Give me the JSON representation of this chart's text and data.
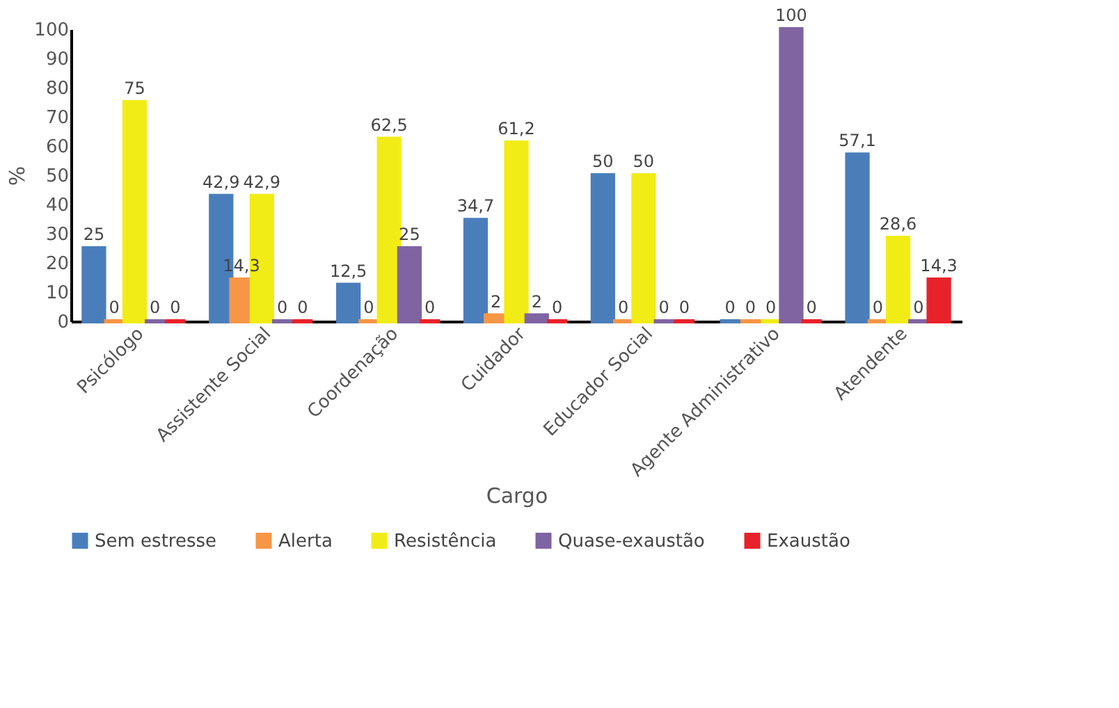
{
  "chart_data": {
    "type": "bar",
    "xlabel": "Cargo",
    "ylabel": "%",
    "categories": [
      "Psicólogo",
      "Assistente Social",
      "Coordenação",
      "Cuidador",
      "Educador Social",
      "Agente Administrativo",
      "Atendente"
    ],
    "series": [
      {
        "name": "Sem estresse",
        "color": "#4a7ebb",
        "values": [
          25,
          42.9,
          12.5,
          34.7,
          50,
          0,
          57.1
        ],
        "value_labels": [
          "25",
          "42,9",
          "12,5",
          "34,7",
          "50",
          "0",
          "57,1"
        ]
      },
      {
        "name": "Alerta",
        "color": "#f79646",
        "values": [
          0,
          14.3,
          0,
          2,
          0,
          0,
          0
        ],
        "value_labels": [
          "0",
          "14,3",
          "0",
          "2",
          "0",
          "0",
          "0"
        ]
      },
      {
        "name": "Resistência",
        "color": "#f2ec16",
        "values": [
          75,
          42.9,
          62.5,
          61.2,
          50,
          0,
          28.6
        ],
        "value_labels": [
          "75",
          "42,9",
          "62,5",
          "61,2",
          "50",
          "0",
          "28,6"
        ]
      },
      {
        "name": "Quase-exaustão",
        "color": "#8064a2",
        "values": [
          0,
          0,
          25,
          2,
          0,
          100,
          0
        ],
        "value_labels": [
          "0",
          "0",
          "25",
          "2",
          "0",
          "100",
          "0"
        ]
      },
      {
        "name": "Exaustão",
        "color": "#e8222a",
        "values": [
          0,
          0,
          0,
          0,
          0,
          0,
          14.3
        ],
        "value_labels": [
          "0",
          "0",
          "0",
          "0",
          "0",
          "0",
          "14,3"
        ]
      }
    ],
    "ylim": [
      0,
      100
    ],
    "yticks": [
      0,
      10,
      20,
      30,
      40,
      50,
      60,
      70,
      80,
      90,
      100
    ],
    "grid": false,
    "legend": "bottom"
  }
}
